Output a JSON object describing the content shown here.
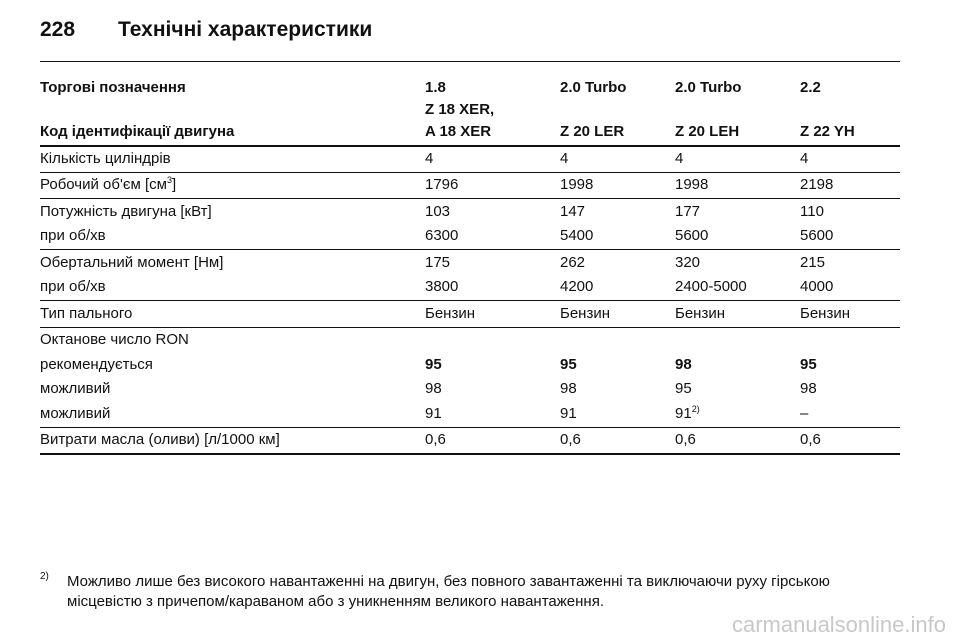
{
  "header": {
    "page_number": "228",
    "title": "Технічні характеристики"
  },
  "table": {
    "head": [
      [
        "Торгові позначення",
        "1.8",
        "2.0 Turbo",
        "2.0 Turbo",
        "2.2"
      ],
      [
        "Код ідентифікації двигуна",
        "Z 18 XER,\nA 18 XER",
        "Z 20 LER",
        "Z 20 LEH",
        "Z 22 YH"
      ]
    ],
    "groups": [
      [
        [
          "Кількість циліндрів",
          "4",
          "4",
          "4",
          "4"
        ]
      ],
      [
        [
          {
            "text": "Робочий об'єм [см",
            "sup": "3",
            "tail": "]"
          },
          "1796",
          "1998",
          "1998",
          "2198"
        ]
      ],
      [
        [
          "Потужність двигуна [кВт]",
          "103",
          "147",
          "177",
          "110"
        ],
        [
          "при об/хв",
          "6300",
          "5400",
          "5600",
          "5600"
        ]
      ],
      [
        [
          "Обертальний момент [Нм]",
          "175",
          "262",
          "320",
          "215"
        ],
        [
          "при об/хв",
          "3800",
          "4200",
          "2400-5000",
          "4000"
        ]
      ],
      [
        [
          "Тип пального",
          "Бензин",
          "Бензин",
          "Бензин",
          "Бензин"
        ]
      ],
      [
        [
          "Октанове число RON"
        ],
        [
          "рекомендується",
          "95",
          "95",
          "98",
          "95"
        ],
        [
          "можливий",
          "98",
          "98",
          "95",
          "98"
        ],
        [
          "можливий",
          "91",
          "91",
          {
            "text": "91",
            "sup": "2)"
          },
          "–"
        ]
      ],
      [
        [
          "Витрати масла (оливи) [л/1000 км]",
          "0,6",
          "0,6",
          "0,6",
          "0,6"
        ]
      ]
    ]
  },
  "footnote": {
    "mark": "2)",
    "lines": [
      "Можливо лише без високого навантаженні на двигун, без повного завантаженні та виключаючи руху гірською",
      "місцевістю з причепом/караваном або з уникненням великого навантаження."
    ]
  },
  "watermark": "carmanualsonline.info"
}
